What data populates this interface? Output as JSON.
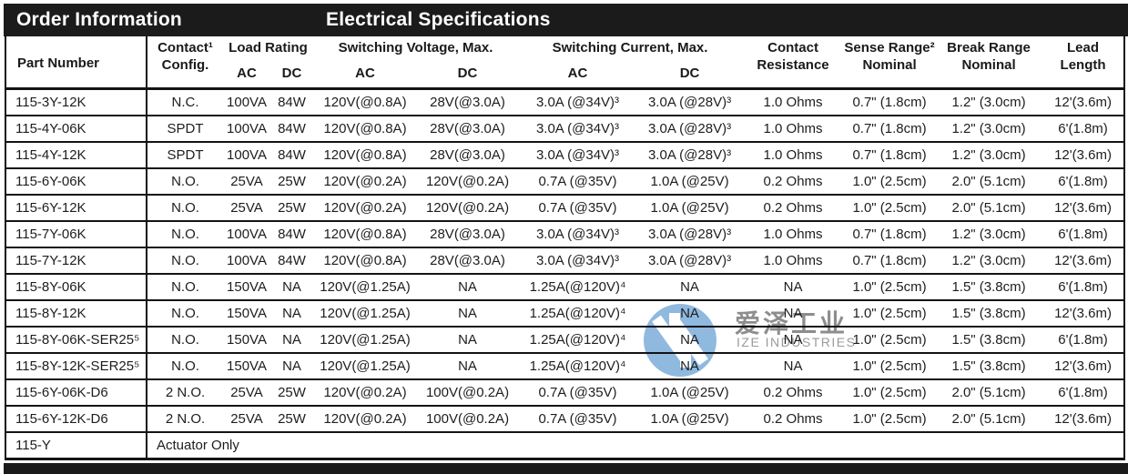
{
  "titlebar": {
    "left": "Order Information",
    "center": "Electrical Specifications"
  },
  "table": {
    "head": {
      "part": "Part Number",
      "contact": {
        "l1": "Contact¹",
        "l2": "Config."
      },
      "load": {
        "l1": "Load Rating",
        "ac": "AC",
        "dc": "DC"
      },
      "sv": {
        "l1": "Switching Voltage, Max.",
        "ac": "AC",
        "dc": "DC"
      },
      "si": {
        "l1": "Switching Current, Max.",
        "ac": "AC",
        "dc": "DC"
      },
      "res": {
        "l1": "Contact",
        "l2": "Resistance"
      },
      "sense": {
        "l1": "Sense Range²",
        "l2": "Nominal"
      },
      "brk": {
        "l1": "Break Range",
        "l2": "Nominal"
      },
      "lead": {
        "l1": "Lead",
        "l2": "Length"
      }
    },
    "rows": [
      [
        "115-3Y-12K",
        "N.C.",
        "100VA",
        "84W",
        "120V(@0.8A)",
        "28V(@3.0A)",
        "3.0A (@34V)³",
        "3.0A (@28V)³",
        "1.0 Ohms",
        "0.7\" (1.8cm)",
        "1.2\" (3.0cm)",
        "12'(3.6m)"
      ],
      [
        "115-4Y-06K",
        "SPDT",
        "100VA",
        "84W",
        "120V(@0.8A)",
        "28V(@3.0A)",
        "3.0A (@34V)³",
        "3.0A (@28V)³",
        "1.0 Ohms",
        "0.7\" (1.8cm)",
        "1.2\" (3.0cm)",
        "6'(1.8m)"
      ],
      [
        "115-4Y-12K",
        "SPDT",
        "100VA",
        "84W",
        "120V(@0.8A)",
        "28V(@3.0A)",
        "3.0A (@34V)³",
        "3.0A (@28V)³",
        "1.0 Ohms",
        "0.7\" (1.8cm)",
        "1.2\" (3.0cm)",
        "12'(3.6m)"
      ],
      [
        "115-6Y-06K",
        "N.O.",
        "25VA",
        "25W",
        "120V(@0.2A)",
        "120V(@0.2A)",
        "0.7A (@35V)",
        "1.0A (@25V)",
        "0.2 Ohms",
        "1.0\" (2.5cm)",
        "2.0\" (5.1cm)",
        "6'(1.8m)"
      ],
      [
        "115-6Y-12K",
        "N.O.",
        "25VA",
        "25W",
        "120V(@0.2A)",
        "120V(@0.2A)",
        "0.7A (@35V)",
        "1.0A (@25V)",
        "0.2 Ohms",
        "1.0\" (2.5cm)",
        "2.0\" (5.1cm)",
        "12'(3.6m)"
      ],
      [
        "115-7Y-06K",
        "N.O.",
        "100VA",
        "84W",
        "120V(@0.8A)",
        "28V(@3.0A)",
        "3.0A (@34V)³",
        "3.0A (@28V)³",
        "1.0 Ohms",
        "0.7\" (1.8cm)",
        "1.2\" (3.0cm)",
        "6'(1.8m)"
      ],
      [
        "115-7Y-12K",
        "N.O.",
        "100VA",
        "84W",
        "120V(@0.8A)",
        "28V(@3.0A)",
        "3.0A (@34V)³",
        "3.0A (@28V)³",
        "1.0 Ohms",
        "0.7\" (1.8cm)",
        "1.2\" (3.0cm)",
        "12'(3.6m)"
      ],
      [
        "115-8Y-06K",
        "N.O.",
        "150VA",
        "NA",
        "120V(@1.25A)",
        "NA",
        "1.25A(@120V)⁴",
        "NA",
        "NA",
        "1.0\" (2.5cm)",
        "1.5\" (3.8cm)",
        "6'(1.8m)"
      ],
      [
        "115-8Y-12K",
        "N.O.",
        "150VA",
        "NA",
        "120V(@1.25A)",
        "NA",
        "1.25A(@120V)⁴",
        "NA",
        "NA",
        "1.0\" (2.5cm)",
        "1.5\" (3.8cm)",
        "12'(3.6m)"
      ],
      [
        "115-8Y-06K-SER25⁵",
        "N.O.",
        "150VA",
        "NA",
        "120V(@1.25A)",
        "NA",
        "1.25A(@120V)⁴",
        "NA",
        "NA",
        "1.0\" (2.5cm)",
        "1.5\" (3.8cm)",
        "6'(1.8m)"
      ],
      [
        "115-8Y-12K-SER25⁵",
        "N.O.",
        "150VA",
        "NA",
        "120V(@1.25A)",
        "NA",
        "1.25A(@120V)⁴",
        "NA",
        "NA",
        "1.0\" (2.5cm)",
        "1.5\" (3.8cm)",
        "12'(3.6m)"
      ],
      [
        "115-6Y-06K-D6",
        "2 N.O.",
        "25VA",
        "25W",
        "120V(@0.2A)",
        "100V(@0.2A)",
        "0.7A (@35V)",
        "1.0A (@25V)",
        "0.2 Ohms",
        "1.0\" (2.5cm)",
        "2.0\" (5.1cm)",
        "6'(1.8m)"
      ],
      [
        "115-6Y-12K-D6",
        "2 N.O.",
        "25VA",
        "25W",
        "120V(@0.2A)",
        "100V(@0.2A)",
        "0.7A (@35V)",
        "1.0A (@25V)",
        "0.2 Ohms",
        "1.0\" (2.5cm)",
        "2.0\" (5.1cm)",
        "12'(3.6m)"
      ]
    ],
    "footer_row": {
      "part": "115-Y",
      "note": "Actuator Only"
    }
  },
  "watermark": {
    "cn": "爱泽工业",
    "en": "IZE INDUSTRIES",
    "logo_color": "#8fb9df",
    "cn_color": "#8d8d8d",
    "en_color": "#9b9b9b"
  }
}
